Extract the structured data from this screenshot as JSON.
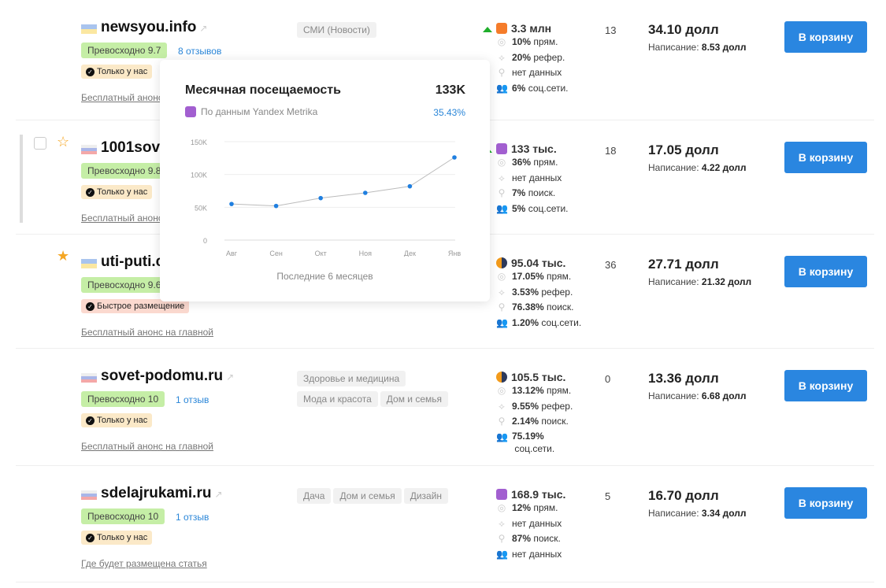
{
  "rows": [
    {
      "flag": "ua",
      "name": "newsyou.info",
      "rating": "Превосходно 9.7",
      "reviews": "8 отзывов",
      "badge": "Только у нас",
      "badge_type": "only",
      "link": "Бесплатный анонс на главной",
      "categories": [
        "СМИ (Новости)"
      ],
      "trend_up": true,
      "source": "ga",
      "traffic": "3.3 млн",
      "direct": "10%",
      "referral": "20%",
      "search": "нет данных",
      "social": "6%",
      "count": "13",
      "price": "34.10 долл",
      "writing": "8.53 долл",
      "button": "В корзину",
      "highlight": false,
      "star": ""
    },
    {
      "flag": "ru",
      "name": "1001sove",
      "rating": "Превосходно 9.8",
      "reviews": "",
      "badge": "Только у нас",
      "badge_type": "only",
      "link": "Бесплатный анонс на главной",
      "categories": [],
      "trend_up": true,
      "source": "ym",
      "traffic": "133 тыс.",
      "direct": "36%",
      "referral": "нет данных",
      "search": "7%",
      "social": "5%",
      "count": "18",
      "price": "17.05 долл",
      "writing": "4.22 долл",
      "button": "В корзину",
      "highlight": true,
      "star": "outline"
    },
    {
      "flag": "ua",
      "name": "uti-puti.c",
      "rating": "Превосходно 9.6",
      "reviews": "",
      "badge": "Быстрое размещение",
      "badge_type": "fast",
      "link": "Бесплатный анонс на главной",
      "categories": [],
      "trend_up": false,
      "source": "lr",
      "traffic": "95.04 тыс.",
      "direct": "17.05%",
      "referral": "3.53%",
      "search": "76.38%",
      "social": "1.20%",
      "count": "36",
      "price": "27.71 долл",
      "writing": "21.32 долл",
      "button": "В корзину",
      "highlight": false,
      "star": "filled"
    },
    {
      "flag": "ru",
      "name": "sovet-podomu.ru",
      "rating": "Превосходно 10",
      "reviews": "1 отзыв",
      "badge": "Только у нас",
      "badge_type": "only",
      "link": "Бесплатный анонс на главной",
      "categories": [
        "Здоровье и медицина",
        "Мода и красота",
        "Дом и семья"
      ],
      "trend_up": false,
      "source": "lr",
      "traffic": "105.5 тыс.",
      "direct": "13.12%",
      "referral": "9.55%",
      "search": "2.14%",
      "social": "75.19%",
      "count": "0",
      "price": "13.36 долл",
      "writing": "6.68 долл",
      "button": "В корзину",
      "highlight": false,
      "star": ""
    },
    {
      "flag": "ru",
      "name": "sdelajrukami.ru",
      "rating": "Превосходно 10",
      "reviews": "1 отзыв",
      "badge": "Только у нас",
      "badge_type": "only",
      "link": "Где будет размещена статья",
      "categories": [
        "Дача",
        "Дом и семья",
        "Дизайн"
      ],
      "trend_up": false,
      "source": "ym",
      "traffic": "168.9 тыс.",
      "direct": "12%",
      "referral": "нет данных",
      "search": "87%",
      "social": "нет данных",
      "count": "5",
      "price": "16.70 долл",
      "writing": "3.34 долл",
      "button": "В корзину",
      "highlight": false,
      "star": ""
    }
  ],
  "labels": {
    "direct": "прям.",
    "referral": "рефер.",
    "search": "поиск.",
    "social": "соц.сети.",
    "writing": "Написание:"
  },
  "popover": {
    "title": "Месячная посещаемость",
    "value": "133K",
    "source": "По данным Yandex Metrika",
    "percent": "35.43%",
    "footer": "Последние 6 месяцев"
  },
  "chart_data": {
    "type": "line",
    "categories": [
      "Авг",
      "Сен",
      "Окт",
      "Ноя",
      "Дек",
      "Янв"
    ],
    "values": [
      55000,
      52000,
      64000,
      72000,
      82000,
      126000
    ],
    "yticks": [
      "0",
      "50K",
      "100K",
      "150K"
    ],
    "ylim": [
      0,
      150000
    ],
    "grid": true,
    "color": "#1f7fe0"
  }
}
